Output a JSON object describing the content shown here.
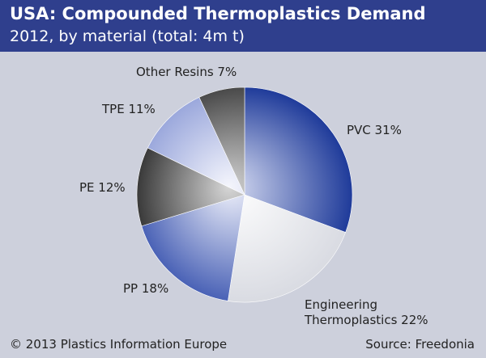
{
  "header": {
    "title": "USA: Compounded Thermoplastics Demand",
    "subtitle": "2012, by material (total: 4m t)"
  },
  "chart_data": {
    "type": "pie",
    "start_at": "top",
    "direction": "clockwise",
    "slices": [
      {
        "label": "PVC",
        "label_lines": [
          "PVC 31%"
        ],
        "value": 31,
        "color_light": "#d8ddf2",
        "color_dark": "#1f3b9a"
      },
      {
        "label": "Engineering Thermoplastics",
        "label_lines": [
          "Engineering",
          "Thermoplastics 22%"
        ],
        "value": 22,
        "color_light": "#ffffff",
        "color_dark": "#d9dbe2"
      },
      {
        "label": "PP",
        "label_lines": [
          "PP 18%"
        ],
        "value": 18,
        "color_light": "#eef0fa",
        "color_dark": "#4a62b6"
      },
      {
        "label": "PE",
        "label_lines": [
          "PE 12%"
        ],
        "value": 12,
        "color_light": "#d6d6d6",
        "color_dark": "#3a3a3a"
      },
      {
        "label": "TPE",
        "label_lines": [
          "TPE 11%"
        ],
        "value": 11,
        "color_light": "#f4f5fc",
        "color_dark": "#9ba8dc"
      },
      {
        "label": "Other Resins",
        "label_lines": [
          "Other Resins 7%"
        ],
        "value": 7,
        "color_light": "#cfcfcf",
        "color_dark": "#4a4a4a"
      }
    ]
  },
  "footer": {
    "copyright": "© 2013 Plastics Information Europe",
    "source": "Source: Freedonia"
  }
}
